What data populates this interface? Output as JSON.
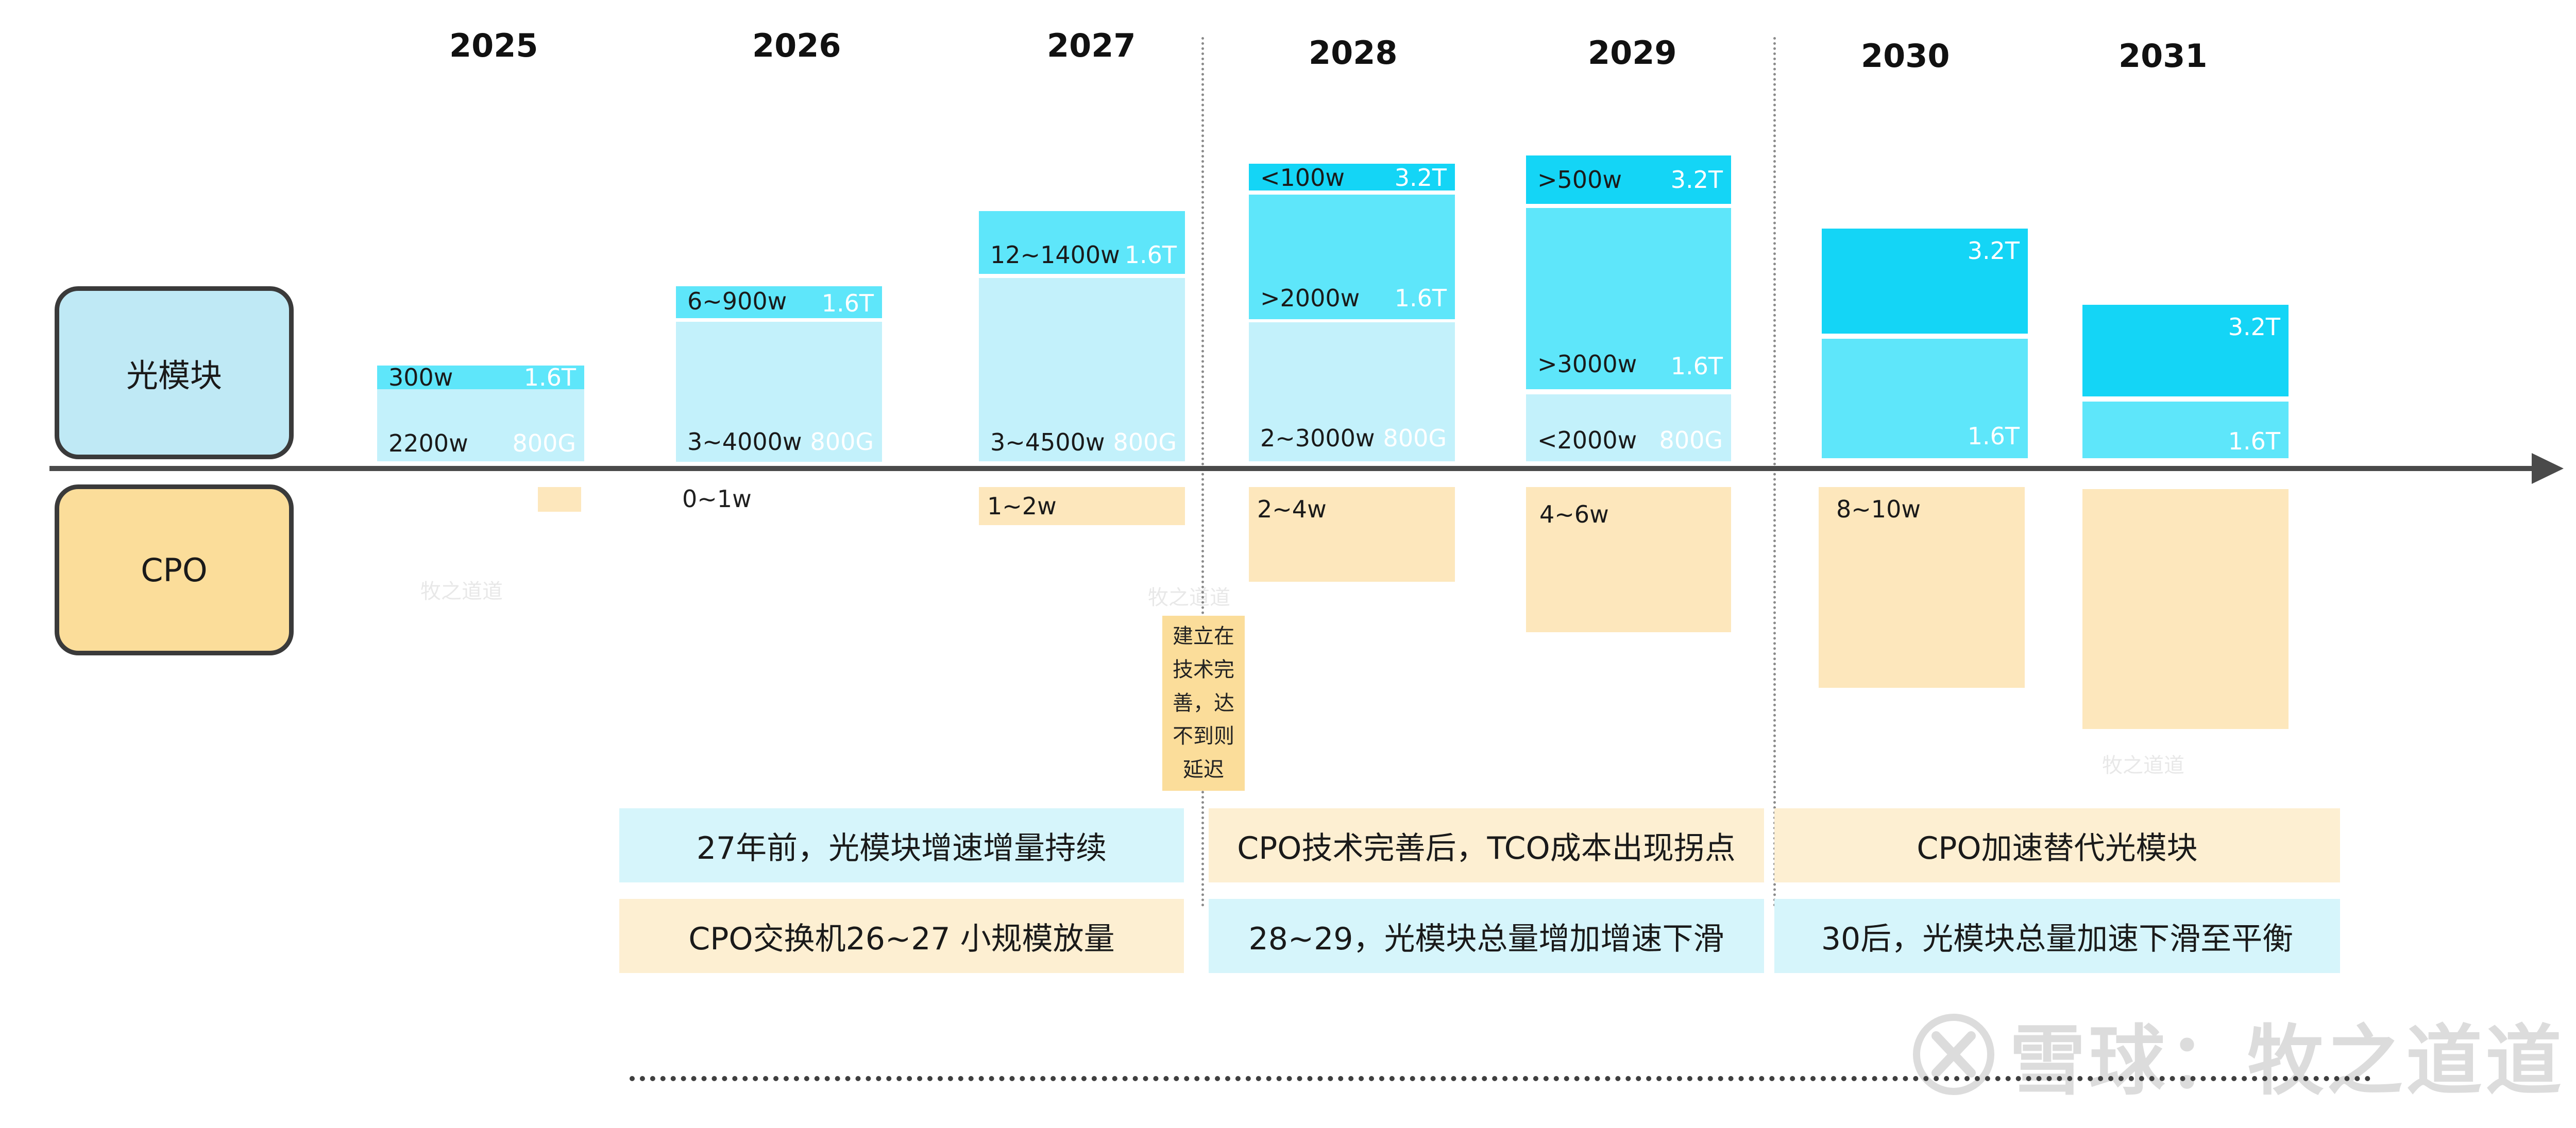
{
  "colors": {
    "optic_light": "#c3f1fb",
    "optic_mid": "#5ee6fa",
    "optic_dark": "#14d5f6",
    "cpo": "#fde7bc",
    "label_optic": "#bfe9f5",
    "label_cpo": "#fbdd9a",
    "axis": "#4a4a4a"
  },
  "years": [
    "2025",
    "2026",
    "2027",
    "2028",
    "2029",
    "2030",
    "2031"
  ],
  "rows": {
    "optic_module": "光模块",
    "cpo": "CPO"
  },
  "bars": [
    {
      "year": "2025",
      "segments": [
        {
          "tier": "1.6T",
          "text": "300w",
          "shade": "mid"
        },
        {
          "tier": "800G",
          "text": "2200w",
          "shade": "light"
        }
      ],
      "cpo": {
        "text": ""
      }
    },
    {
      "year": "2026",
      "segments": [
        {
          "tier": "1.6T",
          "text": "6~900w",
          "shade": "mid"
        },
        {
          "tier": "800G",
          "text": "3~4000w",
          "shade": "light"
        }
      ],
      "cpo": {
        "text": "0~1w"
      }
    },
    {
      "year": "2027",
      "segments": [
        {
          "tier": "1.6T",
          "text": "12~1400w",
          "shade": "mid"
        },
        {
          "tier": "800G",
          "text": "3~4500w",
          "shade": "light"
        }
      ],
      "cpo": {
        "text": "1~2w"
      }
    },
    {
      "year": "2028",
      "segments": [
        {
          "tier": "3.2T",
          "text": "<100w",
          "shade": "dark"
        },
        {
          "tier": "1.6T",
          "text": ">2000w",
          "shade": "mid"
        },
        {
          "tier": "800G",
          "text": "2~3000w",
          "shade": "light"
        }
      ],
      "cpo": {
        "text": "2~4w"
      }
    },
    {
      "year": "2029",
      "segments": [
        {
          "tier": "3.2T",
          "text": ">500w",
          "shade": "dark"
        },
        {
          "tier": "1.6T",
          "text": ">3000w",
          "shade": "mid"
        },
        {
          "tier": "800G",
          "text": "<2000w",
          "shade": "light"
        }
      ],
      "cpo": {
        "text": "4~6w"
      }
    },
    {
      "year": "2030",
      "segments": [
        {
          "tier": "3.2T",
          "text": "",
          "shade": "dark"
        },
        {
          "tier": "1.6T",
          "text": "",
          "shade": "mid"
        }
      ],
      "cpo": {
        "text": "8~10w"
      }
    },
    {
      "year": "2031",
      "segments": [
        {
          "tier": "3.2T",
          "text": "",
          "shade": "dark"
        },
        {
          "tier": "1.6T",
          "text": "",
          "shade": "mid"
        }
      ],
      "cpo": {
        "text": ""
      }
    }
  ],
  "callout": {
    "text": "建立在技术完善，达不到则延迟",
    "lines": [
      "建立在",
      "技术完",
      "善，达",
      "不到则",
      "延迟"
    ]
  },
  "notes": {
    "p1_top": "27年前，光模块增速增量持续",
    "p1_bottom": "CPO交换机26~27 小规模放量",
    "p2_top": "CPO技术完善后，TCO成本出现拐点",
    "p2_bottom": "28~29，光模块总量增加增速下滑",
    "p3_top": "CPO加速替代光模块",
    "p3_bottom": "30后，光模块总量加速下滑至平衡"
  },
  "watermarks": {
    "small": "牧之道道",
    "brand": "雪球：牧之道道"
  }
}
